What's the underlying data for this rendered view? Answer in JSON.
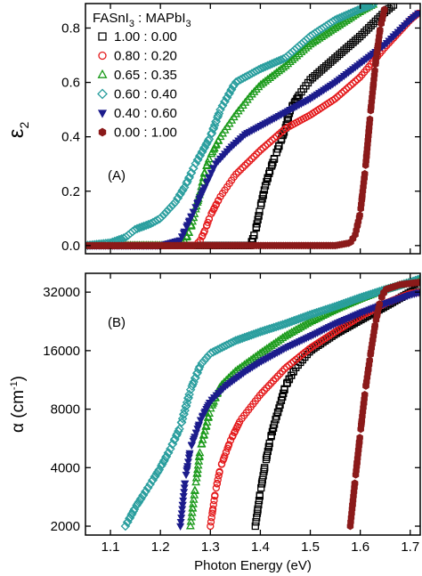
{
  "chart_data": [
    {
      "type": "scatter",
      "panel": "(A)",
      "xlabel": "",
      "ylabel": "ε",
      "ylabel_sub": "2",
      "xlim": [
        1.05,
        1.72
      ],
      "ylim": [
        -0.03,
        0.89
      ],
      "xticks": [
        1.1,
        1.2,
        1.3,
        1.4,
        1.5,
        1.6,
        1.7
      ],
      "yticks": [
        0.0,
        0.2,
        0.4,
        0.6,
        0.8
      ],
      "ytick_labels": [
        "0.0",
        "0.2",
        "0.4",
        "0.6",
        "0.8"
      ],
      "legend": {
        "position": "top-left",
        "header_left": "FASnI",
        "header_left_sub": "3",
        "header_sep": " : ",
        "header_right": "MAPbI",
        "header_right_sub": "3"
      },
      "series": [
        {
          "name": "1.00 : 0.00",
          "marker": "square",
          "color": "#000000",
          "filled": false,
          "points": [
            [
              1.05,
              0.0
            ],
            [
              1.1,
              0.0
            ],
            [
              1.2,
              0.0
            ],
            [
              1.3,
              0.0
            ],
            [
              1.38,
              0.0
            ],
            [
              1.39,
              0.05
            ],
            [
              1.4,
              0.14
            ],
            [
              1.41,
              0.22
            ],
            [
              1.42,
              0.28
            ],
            [
              1.43,
              0.33
            ],
            [
              1.44,
              0.38
            ],
            [
              1.45,
              0.43
            ],
            [
              1.46,
              0.5
            ],
            [
              1.48,
              0.56
            ],
            [
              1.5,
              0.61
            ],
            [
              1.55,
              0.69
            ],
            [
              1.6,
              0.77
            ],
            [
              1.65,
              0.86
            ],
            [
              1.67,
              0.89
            ]
          ]
        },
        {
          "name": "0.80 : 0.20",
          "marker": "circle",
          "color": "#e41a1c",
          "filled": false,
          "points": [
            [
              1.05,
              0.0
            ],
            [
              1.1,
              0.0
            ],
            [
              1.2,
              0.0
            ],
            [
              1.27,
              0.0
            ],
            [
              1.28,
              0.02
            ],
            [
              1.29,
              0.06
            ],
            [
              1.3,
              0.11
            ],
            [
              1.32,
              0.18
            ],
            [
              1.35,
              0.26
            ],
            [
              1.4,
              0.35
            ],
            [
              1.45,
              0.43
            ],
            [
              1.5,
              0.48
            ],
            [
              1.55,
              0.54
            ],
            [
              1.6,
              0.62
            ],
            [
              1.65,
              0.73
            ],
            [
              1.7,
              0.83
            ],
            [
              1.72,
              0.86
            ]
          ]
        },
        {
          "name": "0.65 : 0.35",
          "marker": "triangle",
          "color": "#1a9a1a",
          "filled": false,
          "points": [
            [
              1.05,
              0.0
            ],
            [
              1.15,
              0.0
            ],
            [
              1.23,
              0.0
            ],
            [
              1.25,
              0.02
            ],
            [
              1.26,
              0.06
            ],
            [
              1.27,
              0.13
            ],
            [
              1.28,
              0.2
            ],
            [
              1.29,
              0.28
            ],
            [
              1.3,
              0.33
            ],
            [
              1.32,
              0.4
            ],
            [
              1.35,
              0.48
            ],
            [
              1.38,
              0.55
            ],
            [
              1.4,
              0.59
            ],
            [
              1.45,
              0.66
            ],
            [
              1.5,
              0.74
            ],
            [
              1.55,
              0.8
            ],
            [
              1.6,
              0.86
            ],
            [
              1.63,
              0.89
            ]
          ]
        },
        {
          "name": "0.60 : 0.40",
          "marker": "diamond",
          "color": "#2a9e9e",
          "filled": false,
          "points": [
            [
              1.05,
              0.0
            ],
            [
              1.1,
              0.01
            ],
            [
              1.13,
              0.03
            ],
            [
              1.15,
              0.06
            ],
            [
              1.18,
              0.08
            ],
            [
              1.2,
              0.1
            ],
            [
              1.23,
              0.16
            ],
            [
              1.25,
              0.22
            ],
            [
              1.27,
              0.3
            ],
            [
              1.3,
              0.4
            ],
            [
              1.32,
              0.5
            ],
            [
              1.35,
              0.6
            ],
            [
              1.4,
              0.65
            ],
            [
              1.45,
              0.69
            ],
            [
              1.5,
              0.77
            ],
            [
              1.55,
              0.83
            ],
            [
              1.6,
              0.87
            ],
            [
              1.63,
              0.89
            ]
          ]
        },
        {
          "name": "0.40 : 0.60",
          "marker": "triangle-down",
          "color": "#1c1c8c",
          "filled": true,
          "points": [
            [
              1.05,
              0.0
            ],
            [
              1.15,
              0.0
            ],
            [
              1.2,
              0.0
            ],
            [
              1.24,
              0.02
            ],
            [
              1.25,
              0.06
            ],
            [
              1.27,
              0.14
            ],
            [
              1.29,
              0.22
            ],
            [
              1.31,
              0.3
            ],
            [
              1.34,
              0.36
            ],
            [
              1.37,
              0.41
            ],
            [
              1.4,
              0.44
            ],
            [
              1.45,
              0.49
            ],
            [
              1.5,
              0.54
            ],
            [
              1.55,
              0.6
            ],
            [
              1.6,
              0.67
            ],
            [
              1.65,
              0.74
            ],
            [
              1.7,
              0.83
            ],
            [
              1.72,
              0.86
            ]
          ]
        },
        {
          "name": "0.00 : 1.00",
          "marker": "hexagon",
          "color": "#8b1a1a",
          "filled": true,
          "points": [
            [
              1.05,
              0.0
            ],
            [
              1.2,
              0.0
            ],
            [
              1.3,
              0.0
            ],
            [
              1.4,
              0.0
            ],
            [
              1.5,
              0.0
            ],
            [
              1.55,
              0.0
            ],
            [
              1.58,
              0.01
            ],
            [
              1.59,
              0.04
            ],
            [
              1.6,
              0.12
            ],
            [
              1.61,
              0.28
            ],
            [
              1.62,
              0.48
            ],
            [
              1.63,
              0.66
            ],
            [
              1.64,
              0.8
            ],
            [
              1.65,
              0.88
            ]
          ]
        }
      ]
    },
    {
      "type": "scatter",
      "panel": "(B)",
      "xlabel": "Photon Energy (eV)",
      "ylabel": "α (cm",
      "ylabel_sup": "-1",
      "ylabel_end": ")",
      "yscale": "log2",
      "xlim": [
        1.05,
        1.72
      ],
      "ylim": [
        1800,
        40000
      ],
      "xticks": [
        1.1,
        1.2,
        1.3,
        1.4,
        1.5,
        1.6,
        1.7
      ],
      "xtick_labels": [
        "1.1",
        "1.2",
        "1.3",
        "1.4",
        "1.5",
        "1.6",
        "1.7"
      ],
      "yticks": [
        2000,
        4000,
        8000,
        16000,
        32000
      ],
      "ytick_labels": [
        "2000",
        "4000",
        "8000",
        "16000",
        "32000"
      ],
      "series": [
        {
          "name": "1.00 : 0.00",
          "marker": "square",
          "color": "#000000",
          "filled": false,
          "points": [
            [
              1.39,
              2000
            ],
            [
              1.4,
              3000
            ],
            [
              1.41,
              4200
            ],
            [
              1.42,
              5600
            ],
            [
              1.43,
              7000
            ],
            [
              1.44,
              8500
            ],
            [
              1.45,
              10500
            ],
            [
              1.47,
              13000
            ],
            [
              1.5,
              16000
            ],
            [
              1.55,
              19500
            ],
            [
              1.6,
              23000
            ],
            [
              1.65,
              27000
            ],
            [
              1.7,
              32000
            ],
            [
              1.72,
              34000
            ]
          ]
        },
        {
          "name": "0.80 : 0.20",
          "marker": "circle",
          "color": "#e41a1c",
          "filled": false,
          "points": [
            [
              1.3,
              2000
            ],
            [
              1.31,
              3000
            ],
            [
              1.32,
              4000
            ],
            [
              1.34,
              5500
            ],
            [
              1.36,
              7000
            ],
            [
              1.4,
              9500
            ],
            [
              1.45,
              13000
            ],
            [
              1.5,
              16500
            ],
            [
              1.55,
              20000
            ],
            [
              1.6,
              24000
            ],
            [
              1.65,
              28000
            ],
            [
              1.7,
              31500
            ],
            [
              1.72,
              32000
            ]
          ]
        },
        {
          "name": "0.65 : 0.35",
          "marker": "triangle",
          "color": "#1a9a1a",
          "filled": false,
          "points": [
            [
              1.26,
              2000
            ],
            [
              1.27,
              3200
            ],
            [
              1.28,
              5000
            ],
            [
              1.3,
              8000
            ],
            [
              1.32,
              10500
            ],
            [
              1.35,
              12500
            ],
            [
              1.4,
              15500
            ],
            [
              1.45,
              19000
            ],
            [
              1.5,
              22500
            ],
            [
              1.55,
              26000
            ],
            [
              1.6,
              29500
            ],
            [
              1.65,
              33000
            ],
            [
              1.7,
              36000
            ],
            [
              1.72,
              37000
            ]
          ]
        },
        {
          "name": "0.60 : 0.40",
          "marker": "diamond",
          "color": "#2a9e9e",
          "filled": false,
          "points": [
            [
              1.13,
              2000
            ],
            [
              1.15,
              2500
            ],
            [
              1.18,
              3300
            ],
            [
              1.2,
              4000
            ],
            [
              1.22,
              5000
            ],
            [
              1.24,
              6500
            ],
            [
              1.26,
              10000
            ],
            [
              1.28,
              13500
            ],
            [
              1.3,
              15500
            ],
            [
              1.35,
              18000
            ],
            [
              1.4,
              20000
            ],
            [
              1.45,
              22000
            ],
            [
              1.5,
              24500
            ],
            [
              1.55,
              27000
            ],
            [
              1.6,
              30000
            ],
            [
              1.65,
              33000
            ],
            [
              1.7,
              36000
            ],
            [
              1.72,
              37500
            ]
          ]
        },
        {
          "name": "0.40 : 0.60",
          "marker": "triangle-down",
          "color": "#1c1c8c",
          "filled": true,
          "points": [
            [
              1.24,
              2000
            ],
            [
              1.25,
              3500
            ],
            [
              1.26,
              5000
            ],
            [
              1.28,
              7000
            ],
            [
              1.3,
              8800
            ],
            [
              1.33,
              10500
            ],
            [
              1.37,
              12500
            ],
            [
              1.4,
              14000
            ],
            [
              1.45,
              16500
            ],
            [
              1.5,
              19000
            ],
            [
              1.55,
              22000
            ],
            [
              1.6,
              25000
            ],
            [
              1.65,
              28000
            ],
            [
              1.7,
              31000
            ],
            [
              1.72,
              32000
            ]
          ]
        },
        {
          "name": "0.00 : 1.00",
          "marker": "hexagon",
          "color": "#8b1a1a",
          "filled": true,
          "points": [
            [
              1.58,
              2000
            ],
            [
              1.59,
              3500
            ],
            [
              1.6,
              6000
            ],
            [
              1.61,
              10000
            ],
            [
              1.62,
              15000
            ],
            [
              1.63,
              22000
            ],
            [
              1.64,
              29000
            ],
            [
              1.65,
              33000
            ],
            [
              1.68,
              35000
            ],
            [
              1.72,
              36000
            ]
          ]
        }
      ]
    }
  ]
}
